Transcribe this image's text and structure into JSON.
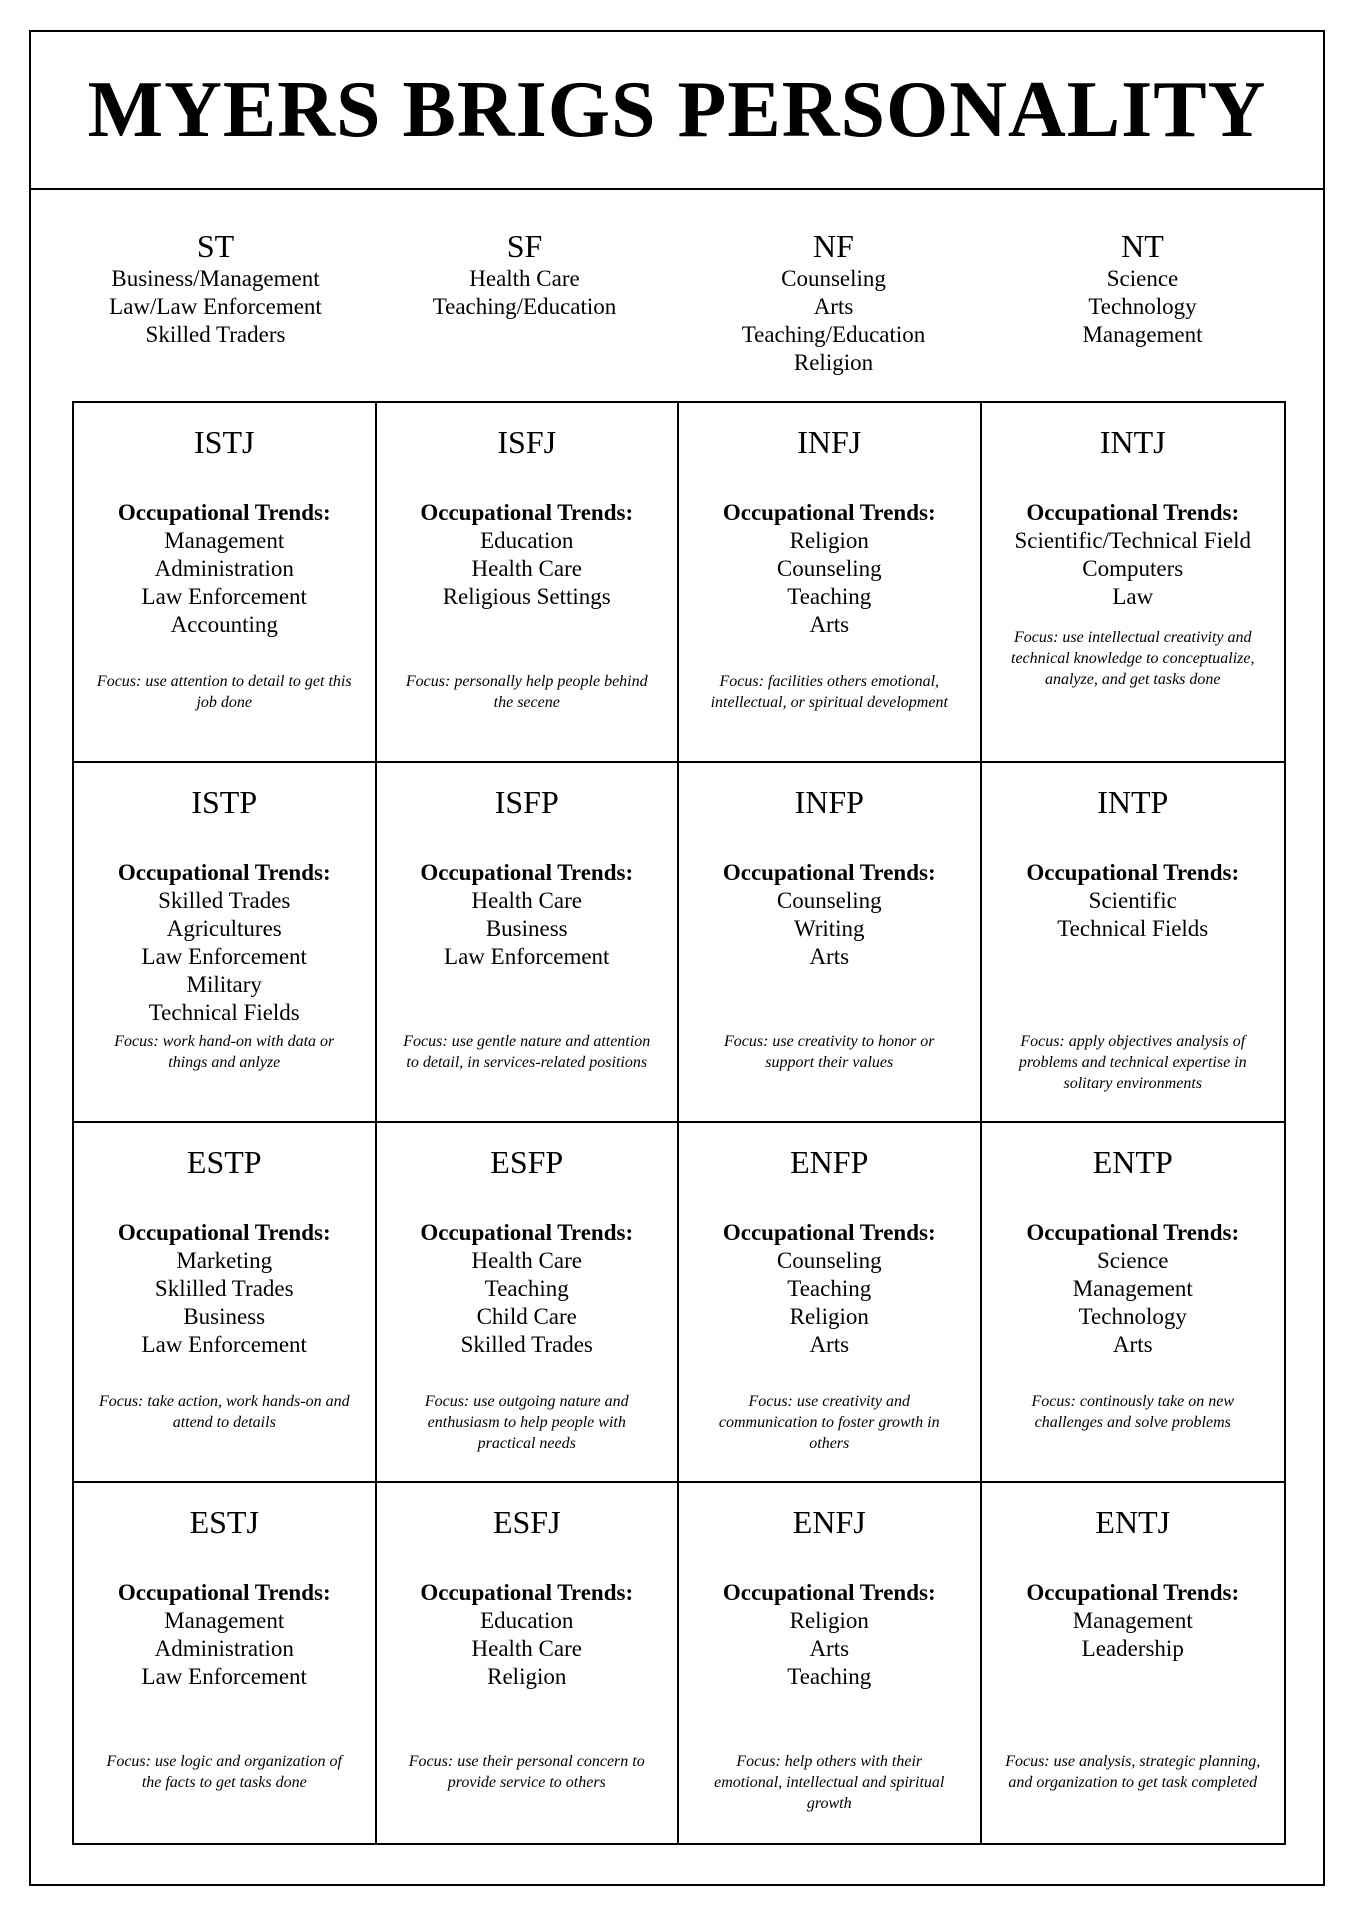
{
  "title": "MYERS BRIGS PERSONALITY",
  "categories": [
    {
      "code": "ST",
      "items": [
        "Business/Management",
        "Law/Law Enforcement",
        "Skilled Traders"
      ]
    },
    {
      "code": "SF",
      "items": [
        "Health Care",
        "Teaching/Education"
      ]
    },
    {
      "code": "NF",
      "items": [
        "Counseling",
        "Arts",
        "Teaching/Education",
        "Religion"
      ]
    },
    {
      "code": "NT",
      "items": [
        "Science",
        "Technology",
        "Management"
      ]
    }
  ],
  "trends_heading": "Occupational Trends:",
  "types": [
    {
      "code": "ISTJ",
      "items": [
        "Management",
        "Administration",
        "Law Enforcement",
        "Accounting"
      ],
      "focus": "Focus: use attention to detail to get this job done"
    },
    {
      "code": "ISFJ",
      "items": [
        "Education",
        "Health Care",
        "Religious Settings"
      ],
      "focus": "Focus: personally help people behind the secene"
    },
    {
      "code": "INFJ",
      "items": [
        "Religion",
        "Counseling",
        "Teaching",
        "Arts"
      ],
      "focus": "Focus: facilities others emotional, intellectual, or spiritual development"
    },
    {
      "code": "INTJ",
      "items": [
        "Scientific/Technical Field",
        "Computers",
        "Law"
      ],
      "focus": "Focus: use intellectual creativity and technical knowledge to conceptualize, analyze, and get tasks done"
    },
    {
      "code": "ISTP",
      "items": [
        "Skilled Trades",
        "Agricultures",
        "Law Enforcement",
        "Military",
        "Technical Fields"
      ],
      "focus": "Focus: work hand-on with data or things and anlyze"
    },
    {
      "code": "ISFP",
      "items": [
        "Health Care",
        "Business",
        "Law Enforcement"
      ],
      "focus": "Focus: use gentle nature and attention to detail, in services-related positions"
    },
    {
      "code": "INFP",
      "items": [
        "Counseling",
        "Writing",
        "Arts"
      ],
      "focus": "Focus: use creativity to honor or support their values"
    },
    {
      "code": "INTP",
      "items": [
        "Scientific",
        "Technical Fields"
      ],
      "focus": "Focus: apply objectives analysis of problems and technical expertise in solitary environments"
    },
    {
      "code": "ESTP",
      "items": [
        "Marketing",
        "Sklilled Trades",
        "Business",
        "Law Enforcement"
      ],
      "focus": "Focus: take action, work hands-on and attend to details"
    },
    {
      "code": "ESFP",
      "items": [
        "Health Care",
        "Teaching",
        "Child Care",
        "Skilled Trades"
      ],
      "focus": "Focus: use outgoing nature and enthusiasm to help people with practical needs"
    },
    {
      "code": "ENFP",
      "items": [
        "Counseling",
        "Teaching",
        "Religion",
        "Arts"
      ],
      "focus": "Focus: use creativity and communication to foster growth in others"
    },
    {
      "code": "ENTP",
      "items": [
        "Science",
        "Management",
        "Technology",
        "Arts"
      ],
      "focus": "Focus: continously take on new challenges and solve problems"
    },
    {
      "code": "ESTJ",
      "items": [
        "Management",
        "Administration",
        "Law Enforcement"
      ],
      "focus": "Focus: use logic and organization of the facts to get tasks done"
    },
    {
      "code": "ESFJ",
      "items": [
        "Education",
        "Health Care",
        "Religion"
      ],
      "focus": "Focus: use their personal concern to provide service to others"
    },
    {
      "code": "ENFJ",
      "items": [
        "Religion",
        "Arts",
        "Teaching"
      ],
      "focus": "Focus: help others with their emotional, intellectual and spiritual growth"
    },
    {
      "code": "ENTJ",
      "items": [
        "Management",
        "Leadership"
      ],
      "focus": "Focus: use analysis, strategic planning, and organization to get task completed"
    }
  ]
}
